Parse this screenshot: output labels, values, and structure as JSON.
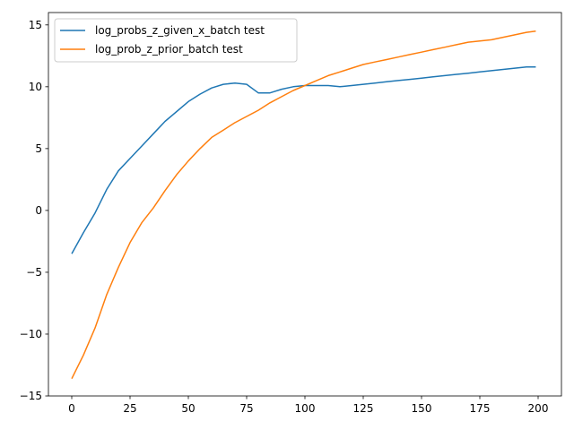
{
  "chart_data": {
    "type": "line",
    "title": "",
    "xlabel": "",
    "ylabel": "",
    "xlim": [
      -10,
      210
    ],
    "ylim": [
      -15,
      16
    ],
    "xticks": [
      0,
      25,
      50,
      75,
      100,
      125,
      150,
      175,
      200
    ],
    "yticks": [
      -15,
      -10,
      -5,
      0,
      5,
      10,
      15
    ],
    "grid": false,
    "legend_position": "top-left",
    "series": [
      {
        "name": "log_probs_z_given_x_batch test",
        "color": "#1f77b4",
        "x": [
          0,
          5,
          10,
          15,
          20,
          25,
          30,
          35,
          40,
          45,
          50,
          55,
          60,
          65,
          70,
          75,
          80,
          85,
          90,
          95,
          100,
          105,
          110,
          115,
          120,
          125,
          130,
          135,
          140,
          145,
          150,
          155,
          160,
          165,
          170,
          175,
          180,
          185,
          190,
          195,
          199
        ],
        "y": [
          -3.5,
          -1.8,
          -0.2,
          1.7,
          3.2,
          4.2,
          5.2,
          6.2,
          7.2,
          8.0,
          8.8,
          9.4,
          9.9,
          10.2,
          10.3,
          10.2,
          9.5,
          9.5,
          9.8,
          10.0,
          10.1,
          10.1,
          10.1,
          10.0,
          10.1,
          10.2,
          10.3,
          10.4,
          10.5,
          10.6,
          10.7,
          10.8,
          10.9,
          11.0,
          11.1,
          11.2,
          11.3,
          11.4,
          11.5,
          11.6,
          11.6
        ]
      },
      {
        "name": "log_prob_z_prior_batch test",
        "color": "#ff7f0e",
        "x": [
          0,
          5,
          10,
          15,
          20,
          25,
          30,
          35,
          40,
          45,
          50,
          55,
          60,
          65,
          70,
          75,
          80,
          85,
          90,
          95,
          100,
          105,
          110,
          115,
          120,
          125,
          130,
          135,
          140,
          145,
          150,
          155,
          160,
          165,
          170,
          175,
          180,
          185,
          190,
          195,
          199
        ],
        "y": [
          -13.6,
          -11.7,
          -9.5,
          -6.8,
          -4.6,
          -2.6,
          -1.0,
          0.2,
          1.6,
          2.9,
          4.0,
          5.0,
          5.9,
          6.5,
          7.1,
          7.6,
          8.1,
          8.7,
          9.2,
          9.7,
          10.1,
          10.5,
          10.9,
          11.2,
          11.5,
          11.8,
          12.0,
          12.2,
          12.4,
          12.6,
          12.8,
          13.0,
          13.2,
          13.4,
          13.6,
          13.7,
          13.8,
          14.0,
          14.2,
          14.4,
          14.5
        ]
      }
    ]
  }
}
